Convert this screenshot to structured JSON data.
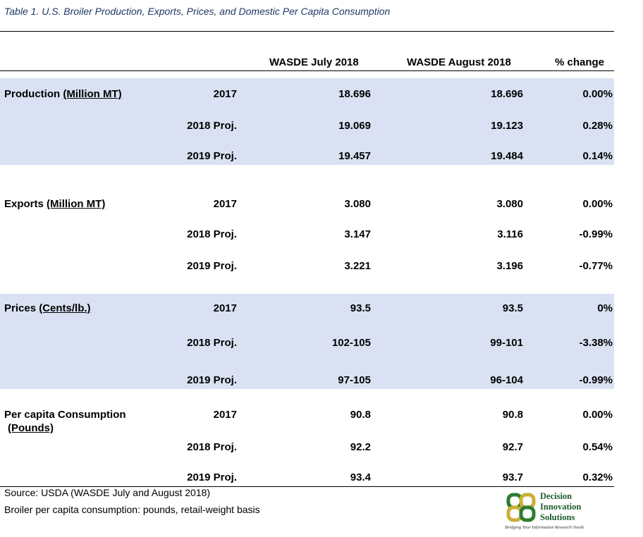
{
  "caption": "Table 1. U.S. Broiler Production, Exports, Prices, and Domestic Per Capita Consumption",
  "columns": [
    "WASDE July 2018",
    "WASDE August 2018",
    "% change"
  ],
  "sections": [
    {
      "label": "Production",
      "unit": "(Million MT)",
      "rows": [
        {
          "year": "2017",
          "july": "18.696",
          "august": "18.696",
          "change": "0.00%"
        },
        {
          "year": "2018 Proj.",
          "july": "19.069",
          "august": "19.123",
          "change": "0.28%"
        },
        {
          "year": "2019 Proj.",
          "july": "19.457",
          "august": "19.484",
          "change": "0.14%"
        }
      ]
    },
    {
      "label": "Exports",
      "unit": "(Million MT)",
      "rows": [
        {
          "year": "2017",
          "july": "3.080",
          "august": "3.080",
          "change": "0.00%"
        },
        {
          "year": "2018 Proj.",
          "july": "3.147",
          "august": "3.116",
          "change": "-0.99%"
        },
        {
          "year": "2019 Proj.",
          "july": "3.221",
          "august": "3.196",
          "change": "-0.77%"
        }
      ]
    },
    {
      "label": "Prices",
      "unit": "(Cents/lb.)",
      "rows": [
        {
          "year": "2017",
          "july": "93.5",
          "august": "93.5",
          "change": "0%"
        },
        {
          "year": "2018 Proj.",
          "july": "102-105",
          "august": "99-101",
          "change": "-3.38%"
        },
        {
          "year": "2019 Proj.",
          "july": "97-105",
          "august": "96-104",
          "change": "-0.99%"
        }
      ]
    },
    {
      "label": "Per capita Consumption",
      "unit": "(Pounds)",
      "rows": [
        {
          "year": "2017",
          "july": "90.8",
          "august": "90.8",
          "change": "0.00%"
        },
        {
          "year": "2018 Proj.",
          "july": "92.2",
          "august": "92.7",
          "change": "0.54%"
        },
        {
          "year": "2019 Proj.",
          "july": "93.4",
          "august": "93.7",
          "change": "0.32%"
        }
      ]
    }
  ],
  "source_note": "Source: USDA (WASDE July and August 2018)",
  "basis_note": "Broiler per capita consumption: pounds, retail-weight basis",
  "logo": {
    "line1": "Decision",
    "line2": "Innovation",
    "line3": "Solutions",
    "tagline": "Bridging Your Information Research Needs"
  },
  "colors": {
    "band": "#dae1f2",
    "caption": "#1f3864",
    "logo_green": "#1e5c2a"
  }
}
